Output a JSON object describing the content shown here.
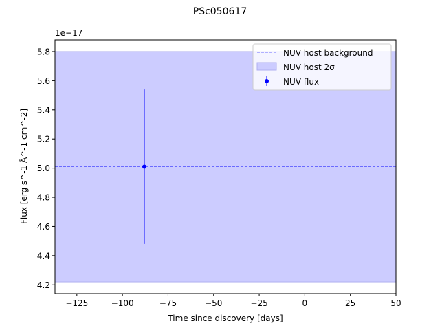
{
  "chart_data": {
    "type": "scatter",
    "title": "PSc050617",
    "xlabel": "Time since discovery [days]",
    "ylabel": "Flux [erg s^-1 Å^-1 cm^-2]",
    "offset_label": "1e−17",
    "xlim": [
      -137,
      50
    ],
    "ylim": [
      4.14,
      5.88
    ],
    "xticks": [
      -125,
      -100,
      -75,
      -50,
      -25,
      0,
      25,
      50
    ],
    "xtick_labels": [
      "−125",
      "−100",
      "−75",
      "−50",
      "−25",
      "0",
      "25",
      "50"
    ],
    "yticks": [
      4.2,
      4.4,
      4.6,
      4.8,
      5.0,
      5.2,
      5.4,
      5.6,
      5.8
    ],
    "ytick_labels": [
      "4.2",
      "4.4",
      "4.6",
      "4.8",
      "5.0",
      "5.2",
      "5.4",
      "5.6",
      "5.8"
    ],
    "grid": false,
    "legend_position": "top-right",
    "host_background": {
      "name": "NUV host background",
      "value": 5.01,
      "color": "#6a6aff"
    },
    "host_band": {
      "name": "NUV host 2σ",
      "low": 4.22,
      "high": 5.8,
      "color": "#ccccff",
      "edge": "#b0b0f0"
    },
    "series": [
      {
        "name": "NUV flux",
        "color": "#0000ff",
        "points": [
          {
            "x": -88,
            "y": 5.01,
            "yerr_low": 4.48,
            "yerr_high": 5.54
          }
        ]
      }
    ]
  }
}
